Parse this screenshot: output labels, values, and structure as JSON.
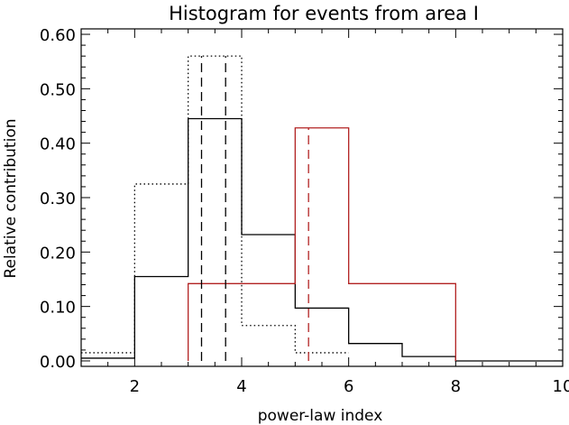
{
  "chart_data": {
    "type": "histogram",
    "title": "Histogram for events from area I",
    "xlabel": "power-law index",
    "ylabel": "Relative contribution",
    "xlim": [
      1,
      10
    ],
    "ylim": [
      -0.01,
      0.61
    ],
    "x_ticks": [
      2,
      4,
      6,
      8,
      10
    ],
    "x_tick_labels": [
      "2",
      "4",
      "6",
      "8",
      "10"
    ],
    "y_ticks": [
      0.0,
      0.1,
      0.2,
      0.3,
      0.4,
      0.5,
      0.6
    ],
    "y_tick_labels": [
      "0.00",
      "0.10",
      "0.20",
      "0.30",
      "0.40",
      "0.50",
      "0.60"
    ],
    "grid": false,
    "legend": "none",
    "series": [
      {
        "style": "solid",
        "color": "#000000",
        "bin_edges": [
          1,
          2,
          3,
          4,
          5,
          6,
          7,
          8,
          10
        ],
        "values": [
          0.005,
          0.155,
          0.445,
          0.232,
          0.097,
          0.032,
          0.008,
          0.0
        ]
      },
      {
        "style": "dotted",
        "color": "#000000",
        "bin_edges": [
          1,
          2,
          3,
          4,
          5,
          6
        ],
        "values": [
          0.015,
          0.325,
          0.56,
          0.065,
          0.015
        ]
      },
      {
        "style": "solid",
        "color": "#b22222",
        "bin_edges": [
          3,
          5,
          6,
          8
        ],
        "values": [
          0.142,
          0.428,
          0.142
        ]
      }
    ],
    "markers": [
      {
        "x": 3.25,
        "color": "#000000",
        "style": "dashed",
        "height": 0.56
      },
      {
        "x": 3.7,
        "color": "#000000",
        "style": "dashed",
        "height": 0.56
      },
      {
        "x": 5.25,
        "color": "#b22222",
        "style": "dashed",
        "height": 0.428
      }
    ]
  }
}
